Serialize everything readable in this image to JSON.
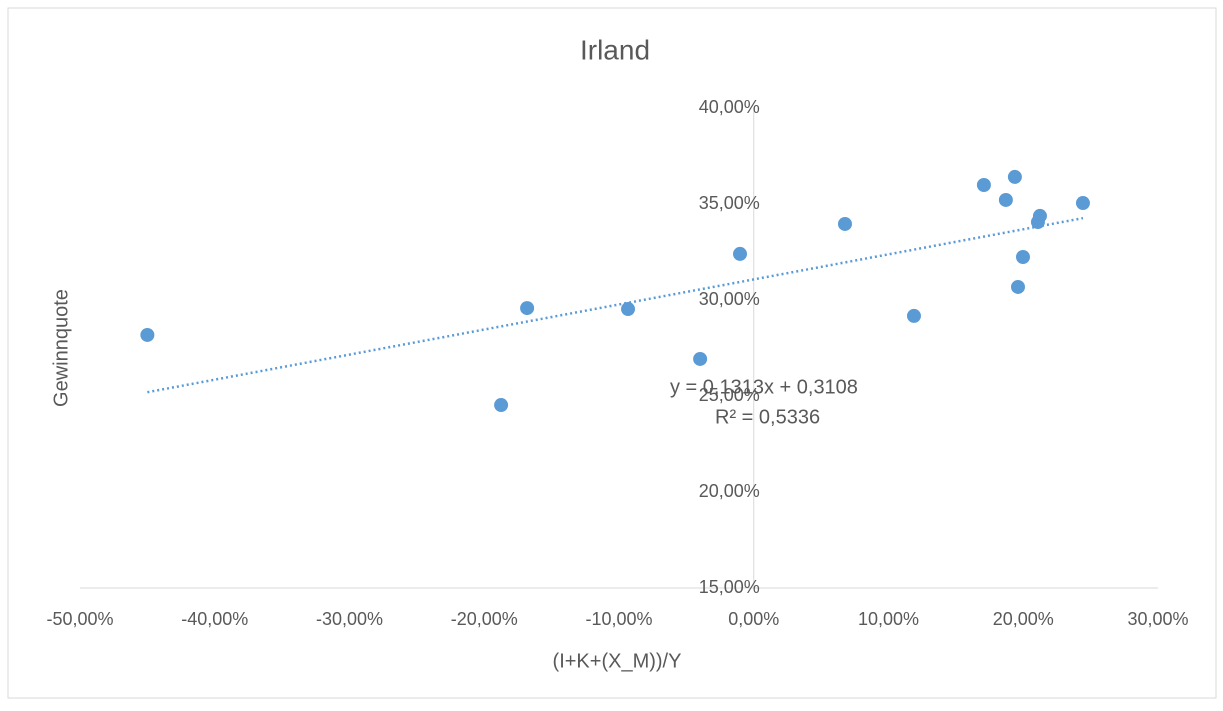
{
  "chart_data": {
    "type": "scatter",
    "title": "Irland",
    "x_label": "(I+K+(X_M))/Y",
    "y_label": "Gewinnquote",
    "trendline_equation": "y = 0,1313x + 0,3108",
    "trendline_r2": "R² = 0,5336",
    "color": "#5b9bd5",
    "trendline": true,
    "x": [
      -45.0,
      -18.75,
      -16.82,
      -9.33,
      -3.98,
      -1.02,
      6.77,
      11.89,
      17.08,
      18.71,
      19.38,
      19.61,
      19.98,
      21.09,
      21.24,
      24.43
    ],
    "values": [
      28.18,
      24.53,
      29.58,
      29.53,
      26.93,
      32.4,
      33.96,
      29.17,
      35.99,
      35.21,
      36.41,
      30.68,
      32.24,
      34.06,
      34.38,
      35.05
    ],
    "xlim": [
      -50,
      30
    ],
    "xticks": [
      {
        "value": -50,
        "label": "-50,00%"
      },
      {
        "value": -40,
        "label": "-40,00%"
      },
      {
        "value": -30,
        "label": "-30,00%"
      },
      {
        "value": -20,
        "label": "-20,00%"
      },
      {
        "value": -10,
        "label": "-10,00%"
      },
      {
        "value": 0,
        "label": "0,00%"
      },
      {
        "value": 10,
        "label": "10,00%"
      },
      {
        "value": 20,
        "label": "20,00%"
      },
      {
        "value": 30,
        "label": "30,00%"
      }
    ],
    "ylim": [
      15,
      40
    ],
    "yticks": [
      {
        "value": 15,
        "label": "15,00%"
      },
      {
        "value": 20,
        "label": "20,00%"
      },
      {
        "value": 25,
        "label": "25,00%"
      },
      {
        "value": 30,
        "label": "30,00%"
      },
      {
        "value": 35,
        "label": "35,00%"
      },
      {
        "value": 40,
        "label": "40,00%"
      }
    ]
  }
}
